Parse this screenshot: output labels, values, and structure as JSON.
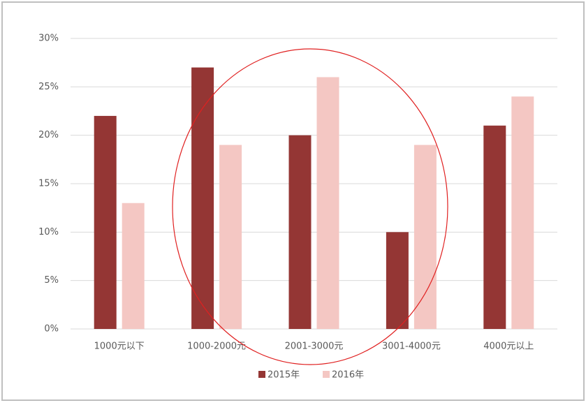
{
  "chart_data": {
    "type": "bar",
    "categories": [
      "1000元以下",
      "1000-2000元",
      "2001-3000元",
      "3001-4000元",
      "4000元以上"
    ],
    "series": [
      {
        "name": "2015年",
        "color": "#943634",
        "values": [
          22,
          27,
          20,
          10,
          21
        ]
      },
      {
        "name": "2016年",
        "color": "#f4c7c3",
        "values": [
          13,
          19,
          26,
          19,
          24
        ]
      }
    ],
    "ylim": [
      0,
      30
    ],
    "yticks": [
      {
        "value": 0,
        "label": "0%"
      },
      {
        "value": 5,
        "label": "5%"
      },
      {
        "value": 10,
        "label": "10%"
      },
      {
        "value": 15,
        "label": "15%"
      },
      {
        "value": 20,
        "label": "20%"
      },
      {
        "value": 25,
        "label": "25%"
      },
      {
        "value": 30,
        "label": "30%"
      }
    ],
    "grid": true
  }
}
